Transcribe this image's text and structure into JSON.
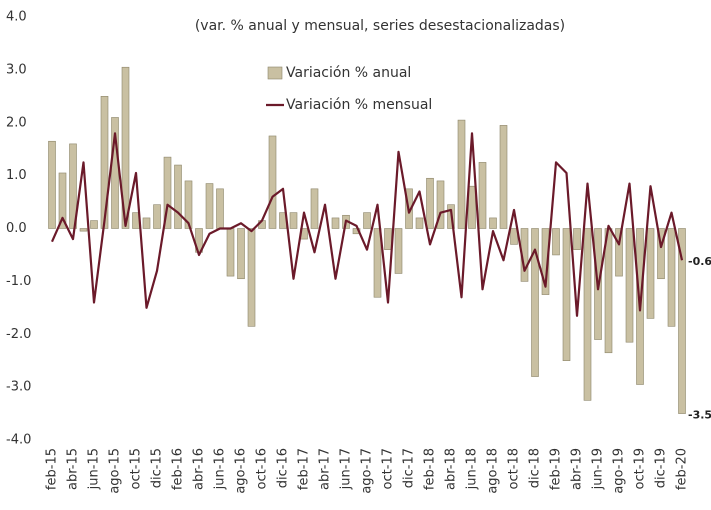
{
  "chart_data": {
    "type": "bar_line",
    "title": "(var. % anual y mensual, series desestacionalizadas)",
    "categories": [
      "feb-15",
      null,
      "abr-15",
      null,
      "jun-15",
      null,
      "ago-15",
      null,
      "oct-15",
      null,
      "dic-15",
      null,
      "feb-16",
      null,
      "abr-16",
      null,
      "jun-16",
      null,
      "ago-16",
      null,
      "oct-16",
      null,
      "dic-16",
      null,
      "feb-17",
      null,
      "abr-17",
      null,
      "jun-17",
      null,
      "ago-17",
      null,
      "oct-17",
      null,
      "dic-17",
      null,
      "feb-18",
      null,
      "abr-18",
      null,
      "jun-18",
      null,
      "ago-18",
      null,
      "oct-18",
      null,
      "dic-18",
      null,
      "feb-19",
      null,
      "abr-19",
      null,
      "jun-19",
      null,
      "ago-19",
      null,
      "oct-19",
      null,
      "dic-19",
      null,
      "feb-20"
    ],
    "series": [
      {
        "name": "Variación % anual",
        "type": "bar",
        "color": "#c9c0a2",
        "values": [
          1.65,
          1.05,
          1.6,
          -0.05,
          0.15,
          2.5,
          2.1,
          3.05,
          0.3,
          0.2,
          0.45,
          1.35,
          1.2,
          0.9,
          -0.45,
          0.85,
          0.75,
          -0.9,
          -0.95,
          -1.85,
          0.15,
          1.75,
          0.3,
          0.3,
          -0.2,
          0.75,
          0.0,
          0.2,
          0.25,
          -0.1,
          0.3,
          -1.3,
          -0.4,
          -0.85,
          0.75,
          0.2,
          0.95,
          0.9,
          0.45,
          2.05,
          0.8,
          1.25,
          0.2,
          1.95,
          -0.3,
          -1.0,
          -2.8,
          -1.25,
          -0.5,
          -2.5,
          -0.4,
          -3.25,
          -2.1,
          -2.35,
          -0.9,
          -2.15,
          -2.95,
          -1.7,
          -0.95,
          -1.85,
          -3.5
        ]
      },
      {
        "name": "Variación % mensual",
        "type": "line",
        "color": "#6b1a2a",
        "values": [
          -0.25,
          0.2,
          -0.2,
          1.25,
          -1.4,
          0.15,
          1.8,
          0.05,
          1.05,
          -1.5,
          -0.8,
          0.45,
          0.3,
          0.1,
          -0.5,
          -0.1,
          0.0,
          0.0,
          0.1,
          -0.05,
          0.15,
          0.6,
          0.75,
          -0.95,
          0.3,
          -0.45,
          0.45,
          -0.95,
          0.15,
          0.05,
          -0.4,
          0.45,
          -1.4,
          1.45,
          0.3,
          0.7,
          -0.3,
          0.3,
          0.35,
          -1.3,
          1.8,
          -1.15,
          -0.05,
          -0.6,
          0.35,
          -0.8,
          -0.4,
          -1.1,
          1.25,
          1.05,
          -1.65,
          0.85,
          -1.15,
          0.05,
          -0.3,
          0.85,
          -1.55,
          0.8,
          -0.35,
          0.3,
          -0.6
        ]
      }
    ],
    "ylim": [
      -4,
      4
    ],
    "yticks": [
      {
        "value": -4,
        "label": "-4.0"
      },
      {
        "value": -3,
        "label": "-3.0"
      },
      {
        "value": -2,
        "label": "-2.0"
      },
      {
        "value": -1,
        "label": "-1.0"
      },
      {
        "value": 0,
        "label": "0.0"
      },
      {
        "value": 1,
        "label": "1.0"
      },
      {
        "value": 2,
        "label": "2.0"
      },
      {
        "value": 3,
        "label": "3.0"
      },
      {
        "value": 4,
        "label": "4.0"
      }
    ],
    "grid": false,
    "legend": "top"
  }
}
